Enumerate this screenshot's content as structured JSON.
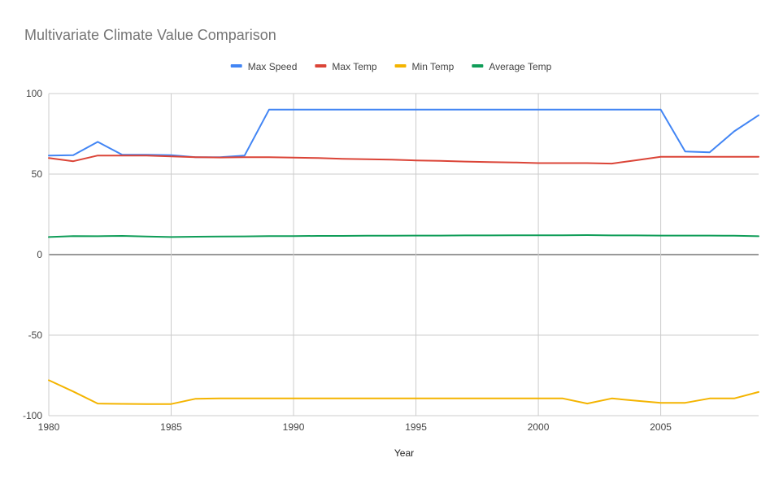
{
  "chart_data": {
    "type": "line",
    "title": "Multivariate Climate Value Comparison",
    "xlabel": "Year",
    "ylabel": "",
    "xlim": [
      1980,
      2009
    ],
    "ylim": [
      -100,
      100
    ],
    "x_ticks": [
      1980,
      1985,
      1990,
      1995,
      2000,
      2005
    ],
    "y_ticks": [
      100,
      50,
      0,
      -50,
      -100
    ],
    "grid": true,
    "legend_position": "top",
    "x": [
      1980,
      1981,
      1982,
      1983,
      1984,
      1985,
      1986,
      1987,
      1988,
      1989,
      1990,
      1991,
      1992,
      1993,
      1994,
      1995,
      1996,
      1997,
      1998,
      1999,
      2000,
      2001,
      2002,
      2003,
      2004,
      2005,
      2006,
      2007,
      2008,
      2009
    ],
    "series": [
      {
        "name": "Max Speed",
        "color": "#4285f4",
        "values": [
          61.5,
          61.7,
          70,
          62,
          62,
          61.7,
          60.5,
          60.5,
          61.5,
          90,
          90,
          90,
          90,
          90,
          90,
          90,
          90,
          90,
          90,
          90,
          90,
          90,
          90,
          90,
          90,
          90,
          64,
          63.5,
          76.5,
          86.5
        ]
      },
      {
        "name": "Max Temp",
        "color": "#db4437",
        "values": [
          60,
          58,
          61.5,
          61.5,
          61.5,
          61,
          60.5,
          60.3,
          60.5,
          60.5,
          60.2,
          60,
          59.5,
          59.2,
          59,
          58.5,
          58.2,
          57.8,
          57.5,
          57.2,
          56.8,
          56.8,
          56.8,
          56.5,
          58.6,
          60.7,
          60.7,
          60.7,
          60.7,
          60.7
        ]
      },
      {
        "name": "Min Temp",
        "color": "#f4b400",
        "values": [
          -78,
          -85,
          -92.5,
          -92.7,
          -92.8,
          -92.8,
          -89.5,
          -89.3,
          -89.3,
          -89.3,
          -89.3,
          -89.3,
          -89.3,
          -89.3,
          -89.3,
          -89.3,
          -89.3,
          -89.3,
          -89.3,
          -89.3,
          -89.3,
          -89.3,
          -92.5,
          -89.3,
          -90.7,
          -92,
          -92,
          -89.3,
          -89.3,
          -85.3
        ]
      },
      {
        "name": "Average Temp",
        "color": "#0f9d58",
        "values": [
          10.9,
          11.5,
          11.4,
          11.6,
          11.2,
          10.9,
          11.1,
          11.2,
          11.3,
          11.5,
          11.5,
          11.6,
          11.6,
          11.7,
          11.7,
          11.8,
          11.8,
          11.9,
          11.9,
          12,
          12,
          12,
          12.1,
          11.9,
          11.9,
          11.8,
          11.8,
          11.8,
          11.7,
          11.4
        ]
      }
    ]
  }
}
